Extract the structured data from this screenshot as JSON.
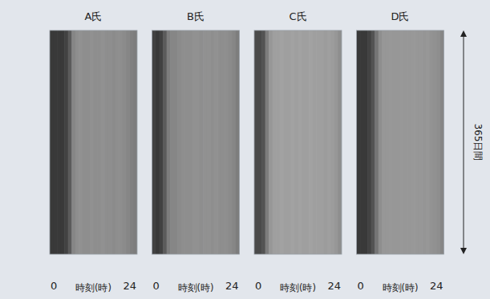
{
  "chart_data": [
    {
      "type": "heatmap",
      "title": "A氏",
      "xlabel": "時刻(時)",
      "xlim": [
        0,
        24
      ],
      "xticks": [
        0,
        24
      ],
      "ylim": [
        0,
        365
      ],
      "tick_labels": "x",
      "clim": [
        0,
        1
      ],
      "cells": [
        0.1,
        0.1,
        0.1,
        0.1,
        0.15,
        0.3,
        0.55,
        0.6,
        0.62,
        0.6,
        0.6,
        0.62,
        0.6,
        0.6,
        0.62,
        0.6,
        0.6,
        0.58,
        0.6,
        0.6,
        0.58,
        0.55,
        0.52,
        0.5
      ]
    },
    {
      "type": "heatmap",
      "title": "B氏",
      "xlabel": "時刻(時)",
      "xlim": [
        0,
        24
      ],
      "xticks": [
        0,
        24
      ],
      "ylim": [
        0,
        365
      ],
      "tick_labels": "x",
      "clim": [
        0,
        1
      ],
      "cells": [
        0.15,
        0.1,
        0.15,
        0.3,
        0.5,
        0.55,
        0.55,
        0.58,
        0.6,
        0.6,
        0.6,
        0.62,
        0.62,
        0.6,
        0.62,
        0.62,
        0.6,
        0.62,
        0.6,
        0.6,
        0.6,
        0.58,
        0.55,
        0.5
      ]
    },
    {
      "type": "heatmap",
      "title": "C氏",
      "xlabel": "時刻(時)",
      "xlim": [
        0,
        24
      ],
      "xticks": [
        0,
        24
      ],
      "ylim": [
        0,
        365
      ],
      "tick_labels": "x",
      "clim": [
        0,
        1
      ],
      "cells": [
        0.2,
        0.2,
        0.25,
        0.5,
        0.65,
        0.7,
        0.7,
        0.72,
        0.7,
        0.7,
        0.72,
        0.7,
        0.72,
        0.7,
        0.7,
        0.72,
        0.7,
        0.7,
        0.7,
        0.68,
        0.7,
        0.68,
        0.65,
        0.6
      ]
    },
    {
      "type": "heatmap",
      "title": "D氏",
      "xlabel": "時刻(時)",
      "xlim": [
        0,
        24
      ],
      "xticks": [
        0,
        24
      ],
      "ylim": [
        0,
        365
      ],
      "tick_labels": "x",
      "clim": [
        0,
        1
      ],
      "ylabel": "365日間",
      "cells": [
        0.1,
        0.1,
        0.1,
        0.15,
        0.25,
        0.45,
        0.6,
        0.65,
        0.65,
        0.66,
        0.65,
        0.65,
        0.66,
        0.65,
        0.65,
        0.66,
        0.65,
        0.65,
        0.64,
        0.65,
        0.63,
        0.62,
        0.6,
        0.55
      ]
    }
  ]
}
